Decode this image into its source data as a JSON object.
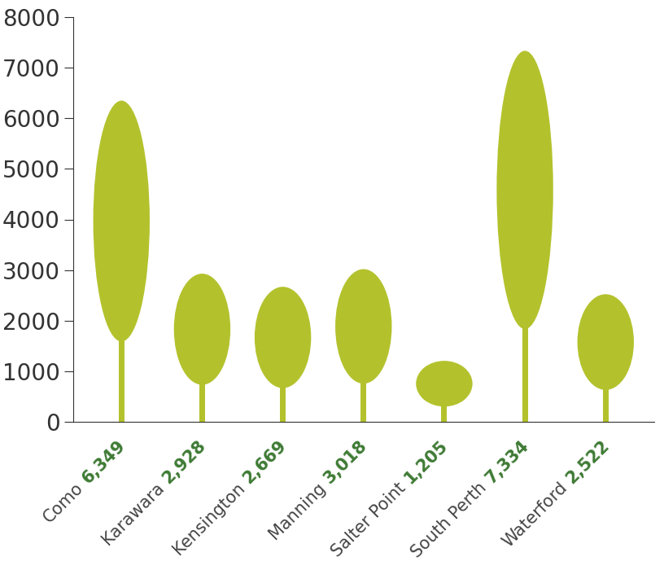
{
  "chart_data": {
    "type": "bar",
    "categories": [
      "Como",
      "Karawara",
      "Kensington",
      "Manning",
      "Salter Point",
      "South Perth",
      "Waterford"
    ],
    "values": [
      6349,
      2928,
      2669,
      3018,
      1205,
      7334,
      2522
    ],
    "value_labels": [
      "6,349",
      "2,928",
      "2,669",
      "3,018",
      "1,205",
      "7,334",
      "2,522"
    ],
    "data_labels": true,
    "color": "#b3c22c",
    "ylim": [
      0,
      8000
    ],
    "yticks": [
      0,
      1000,
      2000,
      3000,
      4000,
      5000,
      6000,
      7000,
      8000
    ],
    "grid": false
  }
}
